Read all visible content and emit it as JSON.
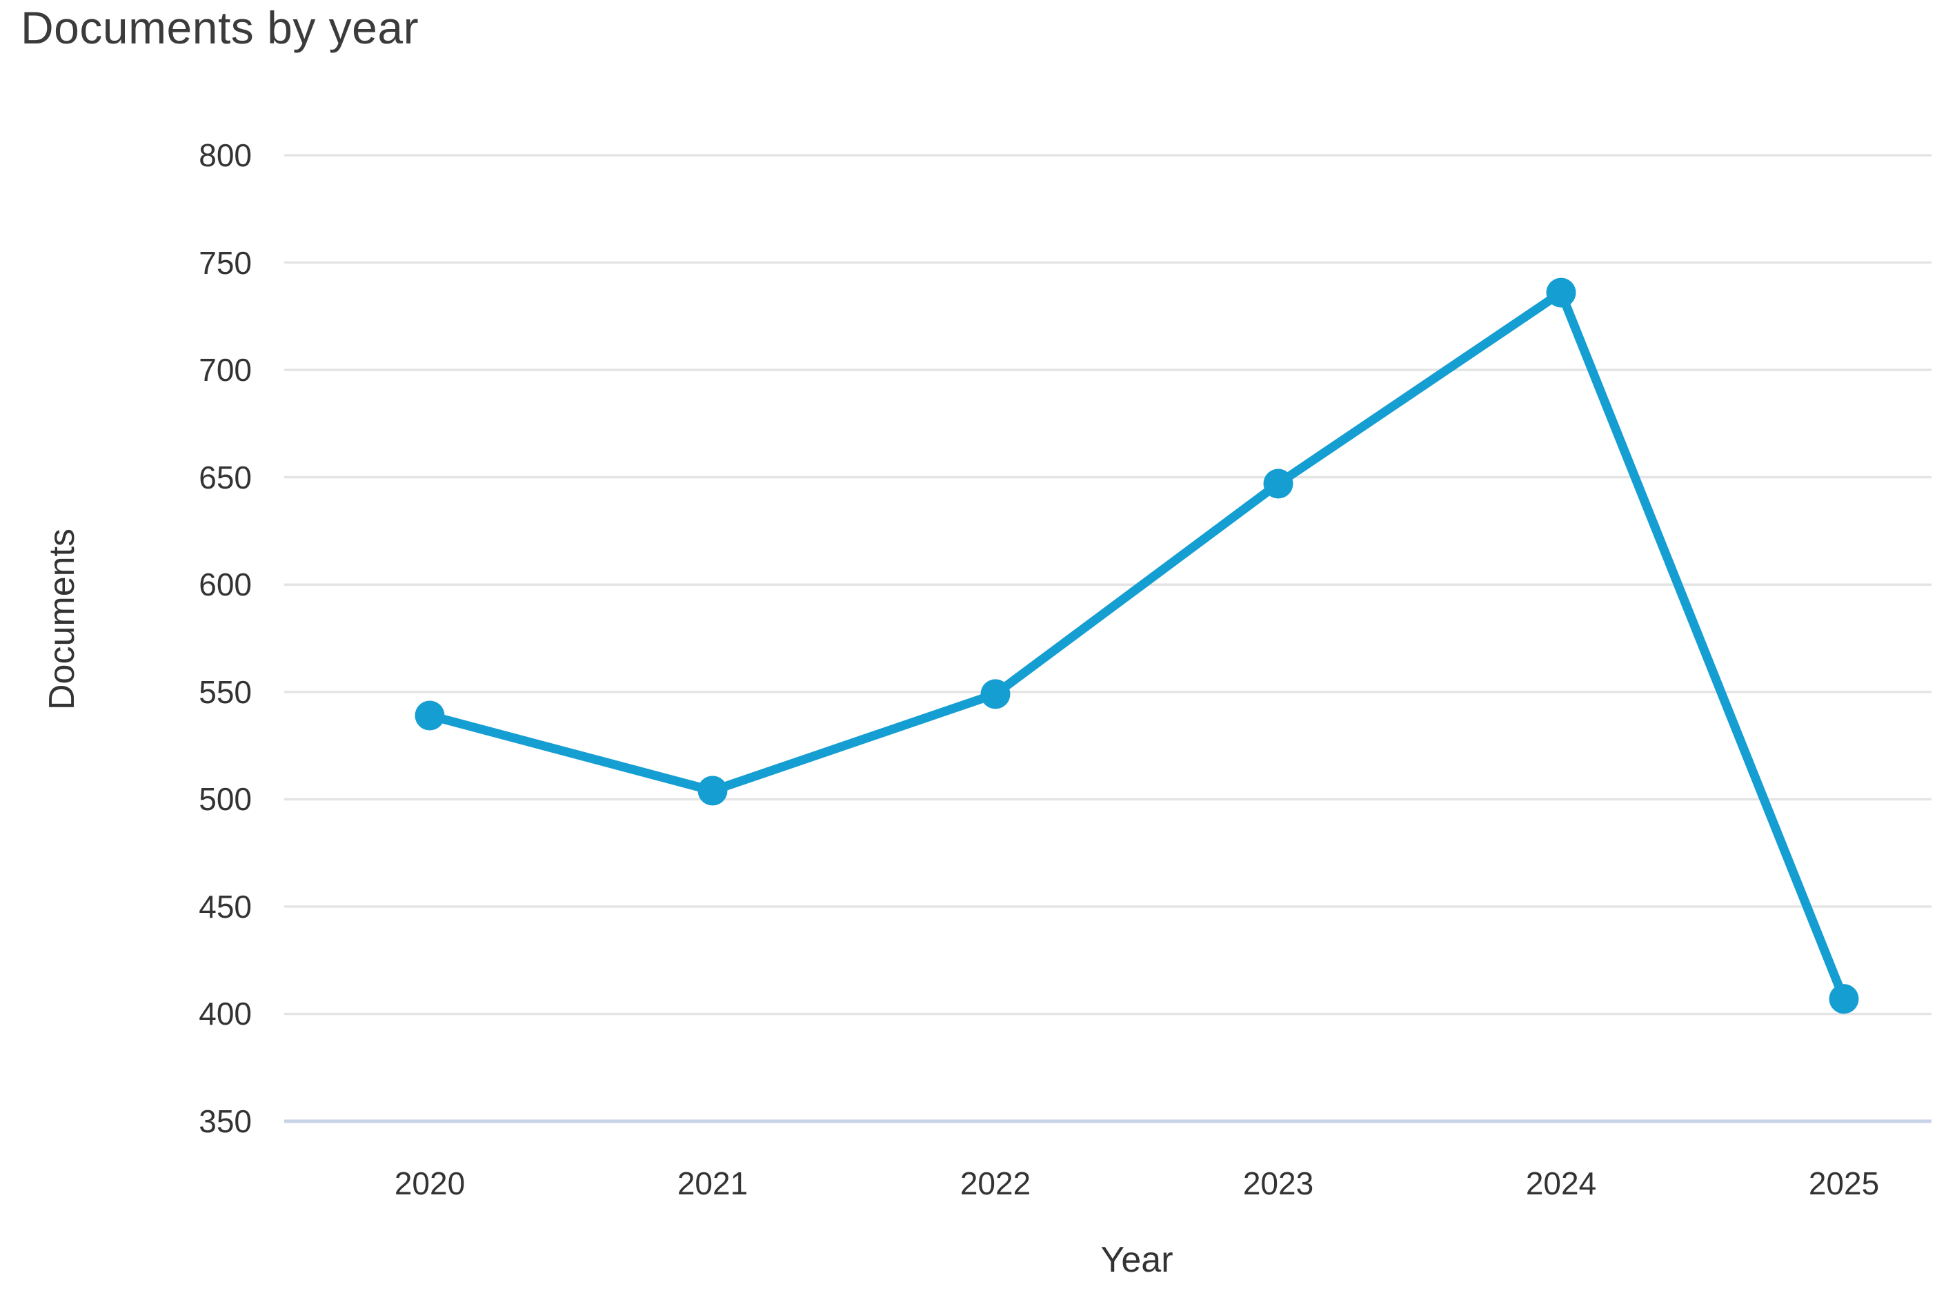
{
  "page": {
    "title": "Documents by year"
  },
  "chart_data": {
    "type": "line",
    "title": "Documents by year",
    "xlabel": "Year",
    "ylabel": "Documents",
    "categories": [
      "2020",
      "2021",
      "2022",
      "2023",
      "2024",
      "2025"
    ],
    "series": [
      {
        "name": "Documents",
        "values": [
          539,
          504,
          549,
          647,
          736,
          407
        ]
      }
    ],
    "ylim": [
      350,
      800
    ],
    "ytick_step": 50,
    "yticks": [
      350,
      400,
      450,
      500,
      550,
      600,
      650,
      700,
      750,
      800
    ],
    "grid": true,
    "legend": "none",
    "marker": "circle",
    "colors": {
      "line": "#149ed2",
      "marker": "#149ed2",
      "gridline": "#e4e4e4",
      "axis_line": "#c8d2e6",
      "title_text": "#3b3b3b",
      "tick_text": "#333333",
      "background": "#ffffff"
    }
  }
}
